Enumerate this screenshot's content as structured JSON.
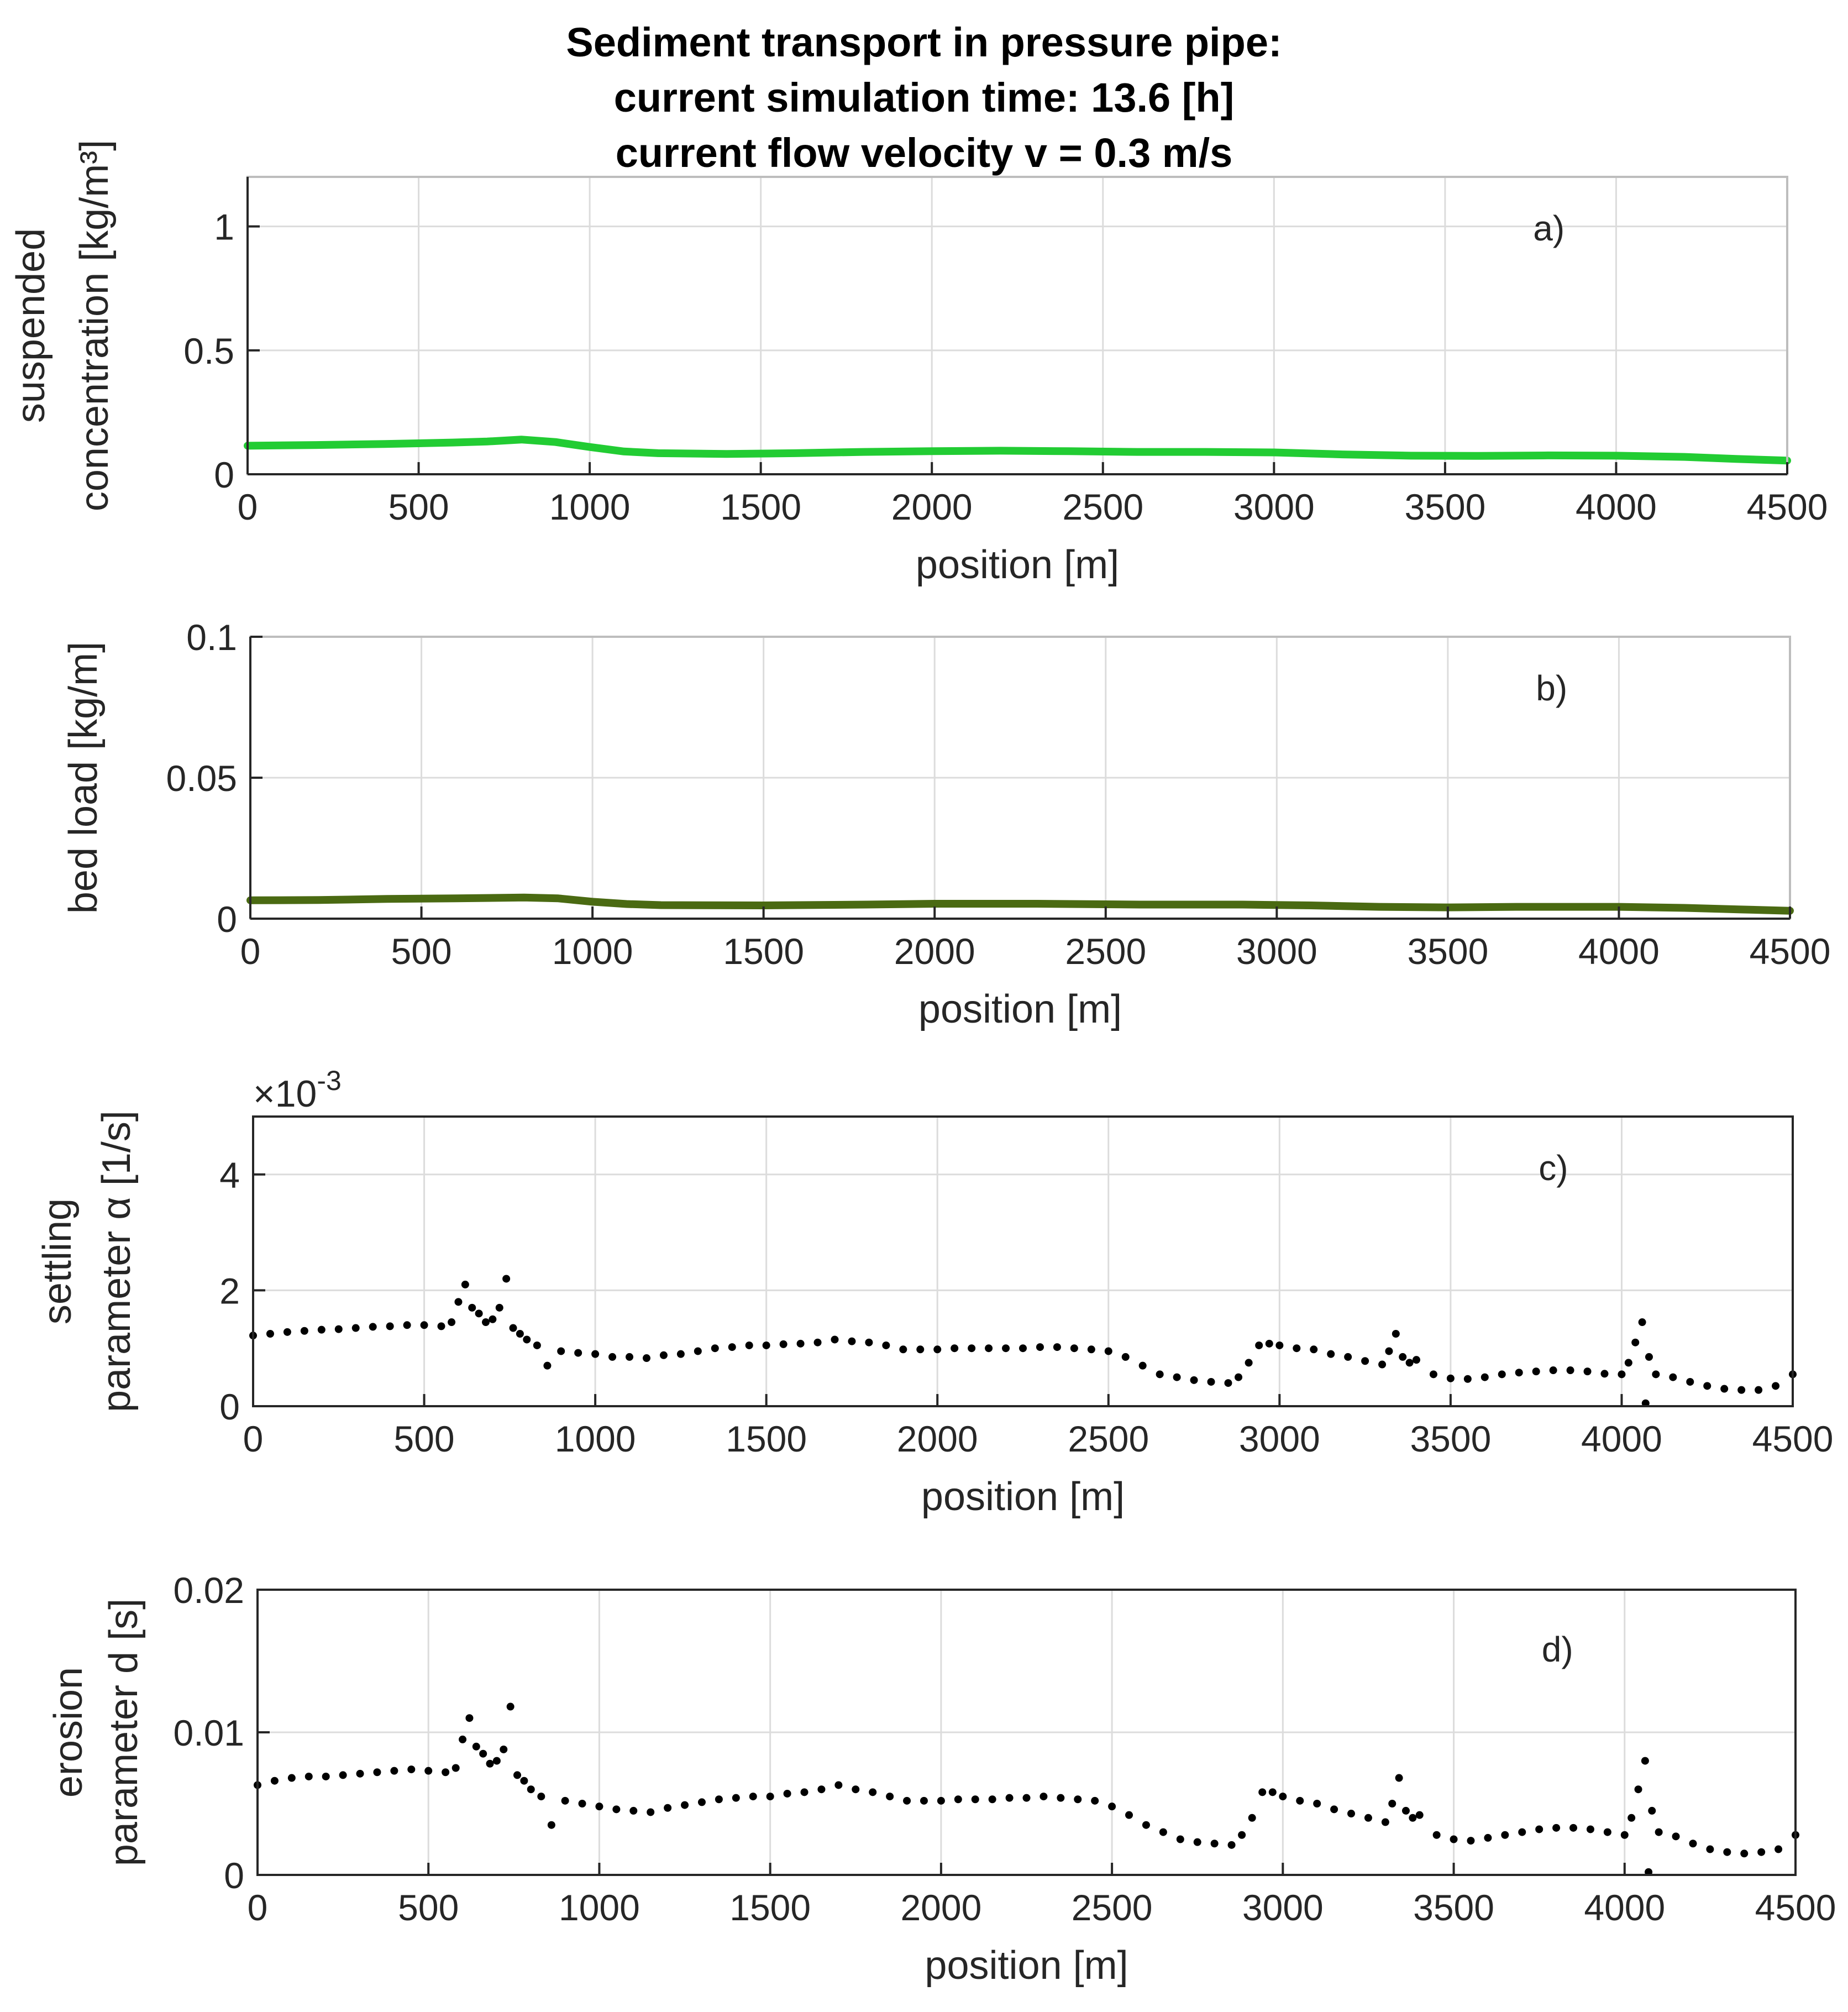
{
  "title_lines": [
    "Sediment transport in pressure pipe:",
    "current simulation time: 13.6 [h]",
    "current flow velocity v = 0.3 m/s"
  ],
  "chart_data": [
    {
      "id": "a",
      "type": "line",
      "panel_label": "a)",
      "xlabel": "position [m]",
      "ylabel_lines": [
        "suspended",
        "concentration [kg/m³]"
      ],
      "xlim": [
        0,
        4500
      ],
      "ylim": [
        0,
        1.2
      ],
      "xticks": [
        0,
        500,
        1000,
        1500,
        2000,
        2500,
        3000,
        3500,
        4000,
        4500
      ],
      "xtick_labels": [
        "0",
        "500",
        "1000",
        "1500",
        "2000",
        "2500",
        "3000",
        "3500",
        "4000",
        "4500"
      ],
      "yticks": [
        0,
        0.5,
        1
      ],
      "ytick_labels": [
        "0",
        "0.5",
        "1"
      ],
      "grid": true,
      "color": "#22cc33",
      "x": [
        0,
        200,
        400,
        600,
        700,
        800,
        900,
        1000,
        1100,
        1200,
        1400,
        1600,
        1800,
        2000,
        2200,
        2400,
        2600,
        2800,
        3000,
        3200,
        3400,
        3600,
        3800,
        4000,
        4200,
        4350,
        4500
      ],
      "y": [
        0.115,
        0.118,
        0.122,
        0.128,
        0.132,
        0.14,
        0.13,
        0.11,
        0.092,
        0.085,
        0.082,
        0.085,
        0.09,
        0.093,
        0.095,
        0.093,
        0.09,
        0.09,
        0.088,
        0.08,
        0.075,
        0.074,
        0.076,
        0.075,
        0.07,
        0.062,
        0.055
      ]
    },
    {
      "id": "b",
      "type": "line",
      "panel_label": "b)",
      "xlabel": "position [m]",
      "ylabel_lines": [
        "bed load [kg/m]"
      ],
      "xlim": [
        0,
        4500
      ],
      "ylim": [
        0,
        0.1
      ],
      "xticks": [
        0,
        500,
        1000,
        1500,
        2000,
        2500,
        3000,
        3500,
        4000,
        4500
      ],
      "xtick_labels": [
        "0",
        "500",
        "1000",
        "1500",
        "2000",
        "2500",
        "3000",
        "3500",
        "4000",
        "4500"
      ],
      "yticks": [
        0,
        0.05,
        0.1
      ],
      "ytick_labels": [
        "0",
        "0.05",
        "0.1"
      ],
      "grid": true,
      "color": "#4a6a12",
      "x": [
        0,
        200,
        400,
        600,
        800,
        900,
        1000,
        1100,
        1200,
        1500,
        1800,
        2000,
        2300,
        2600,
        2900,
        3100,
        3300,
        3500,
        3700,
        4000,
        4200,
        4350,
        4500
      ],
      "y": [
        0.0065,
        0.0066,
        0.007,
        0.0072,
        0.0075,
        0.0072,
        0.006,
        0.0052,
        0.0048,
        0.0047,
        0.005,
        0.0053,
        0.0053,
        0.005,
        0.005,
        0.0047,
        0.0042,
        0.004,
        0.0042,
        0.0042,
        0.0038,
        0.0033,
        0.0028
      ]
    },
    {
      "id": "c",
      "type": "scatter",
      "panel_label": "c)",
      "xlabel": "position [m]",
      "ylabel_lines": [
        "settling",
        "parameter α [1/s]"
      ],
      "exponent_label": "×10",
      "exponent_power": "-3",
      "xlim": [
        0,
        4500
      ],
      "ylim": [
        0,
        5
      ],
      "xticks": [
        0,
        500,
        1000,
        1500,
        2000,
        2500,
        3000,
        3500,
        4000,
        4500
      ],
      "xtick_labels": [
        "0",
        "500",
        "1000",
        "1500",
        "2000",
        "2500",
        "3000",
        "3500",
        "4000",
        "4500"
      ],
      "yticks": [
        0,
        2,
        4
      ],
      "ytick_labels": [
        "0",
        "2",
        "4"
      ],
      "grid": true,
      "color": "#000000",
      "x": [
        0,
        50,
        100,
        150,
        200,
        250,
        300,
        350,
        400,
        450,
        500,
        550,
        580,
        600,
        620,
        640,
        660,
        680,
        700,
        720,
        740,
        760,
        780,
        800,
        830,
        860,
        900,
        950,
        1000,
        1050,
        1100,
        1150,
        1200,
        1250,
        1300,
        1350,
        1400,
        1450,
        1500,
        1550,
        1600,
        1650,
        1700,
        1750,
        1800,
        1850,
        1900,
        1950,
        2000,
        2050,
        2100,
        2150,
        2200,
        2250,
        2300,
        2350,
        2400,
        2450,
        2500,
        2550,
        2600,
        2650,
        2700,
        2750,
        2800,
        2850,
        2880,
        2910,
        2940,
        2970,
        3000,
        3050,
        3100,
        3150,
        3200,
        3250,
        3300,
        3320,
        3340,
        3360,
        3380,
        3400,
        3450,
        3500,
        3550,
        3600,
        3650,
        3700,
        3750,
        3800,
        3850,
        3900,
        3950,
        4000,
        4020,
        4040,
        4060,
        4070,
        4080,
        4100,
        4150,
        4200,
        4250,
        4300,
        4350,
        4400,
        4450,
        4500
      ],
      "y": [
        1.22,
        1.25,
        1.28,
        1.3,
        1.32,
        1.33,
        1.35,
        1.37,
        1.38,
        1.4,
        1.4,
        1.38,
        1.45,
        1.8,
        2.1,
        1.7,
        1.6,
        1.45,
        1.5,
        1.7,
        2.2,
        1.35,
        1.25,
        1.15,
        1.05,
        0.7,
        0.95,
        0.92,
        0.9,
        0.85,
        0.85,
        0.83,
        0.88,
        0.9,
        0.95,
        1.0,
        1.02,
        1.05,
        1.05,
        1.07,
        1.08,
        1.1,
        1.15,
        1.12,
        1.1,
        1.05,
        0.98,
        0.98,
        0.98,
        1.0,
        1.0,
        1.0,
        1.0,
        1.0,
        1.02,
        1.02,
        1.0,
        0.98,
        0.95,
        0.85,
        0.7,
        0.55,
        0.5,
        0.45,
        0.42,
        0.4,
        0.5,
        0.75,
        1.05,
        1.08,
        1.05,
        1.0,
        0.98,
        0.9,
        0.85,
        0.78,
        0.72,
        0.95,
        1.25,
        0.85,
        0.75,
        0.8,
        0.55,
        0.48,
        0.47,
        0.5,
        0.55,
        0.58,
        0.6,
        0.62,
        0.62,
        0.6,
        0.56,
        0.55,
        0.75,
        1.1,
        1.45,
        0.05,
        0.85,
        0.55,
        0.5,
        0.42,
        0.35,
        0.3,
        0.28,
        0.28,
        0.35,
        0.55
      ]
    },
    {
      "id": "d",
      "type": "scatter",
      "panel_label": "d)",
      "xlabel": "position [m]",
      "ylabel_lines": [
        "erosion",
        "parameter d [s]"
      ],
      "xlim": [
        0,
        4500
      ],
      "ylim": [
        0,
        0.02
      ],
      "xticks": [
        0,
        500,
        1000,
        1500,
        2000,
        2500,
        3000,
        3500,
        4000,
        4500
      ],
      "xtick_labels": [
        "0",
        "500",
        "1000",
        "1500",
        "2000",
        "2500",
        "3000",
        "3500",
        "4000",
        "4500"
      ],
      "yticks": [
        0,
        0.01,
        0.02
      ],
      "ytick_labels": [
        "0",
        "0.01",
        "0.02"
      ],
      "grid": true,
      "color": "#000000",
      "x": [
        0,
        50,
        100,
        150,
        200,
        250,
        300,
        350,
        400,
        450,
        500,
        550,
        580,
        600,
        620,
        640,
        660,
        680,
        700,
        720,
        740,
        760,
        780,
        800,
        830,
        860,
        900,
        950,
        1000,
        1050,
        1100,
        1150,
        1200,
        1250,
        1300,
        1350,
        1400,
        1450,
        1500,
        1550,
        1600,
        1650,
        1700,
        1750,
        1800,
        1850,
        1900,
        1950,
        2000,
        2050,
        2100,
        2150,
        2200,
        2250,
        2300,
        2350,
        2400,
        2450,
        2500,
        2550,
        2600,
        2650,
        2700,
        2750,
        2800,
        2850,
        2880,
        2910,
        2940,
        2970,
        3000,
        3050,
        3100,
        3150,
        3200,
        3250,
        3300,
        3320,
        3340,
        3360,
        3380,
        3400,
        3450,
        3500,
        3550,
        3600,
        3650,
        3700,
        3750,
        3800,
        3850,
        3900,
        3950,
        4000,
        4020,
        4040,
        4060,
        4070,
        4080,
        4100,
        4150,
        4200,
        4250,
        4300,
        4350,
        4400,
        4450,
        4500
      ],
      "y": [
        0.0063,
        0.0066,
        0.0068,
        0.0069,
        0.0069,
        0.007,
        0.0071,
        0.0072,
        0.0073,
        0.0074,
        0.0073,
        0.0072,
        0.0075,
        0.0095,
        0.011,
        0.009,
        0.0085,
        0.0078,
        0.008,
        0.0088,
        0.0118,
        0.007,
        0.0066,
        0.006,
        0.0055,
        0.0035,
        0.0052,
        0.005,
        0.0048,
        0.0046,
        0.0045,
        0.0044,
        0.0047,
        0.0049,
        0.0051,
        0.0053,
        0.0054,
        0.0055,
        0.0055,
        0.0057,
        0.0058,
        0.006,
        0.0063,
        0.006,
        0.0058,
        0.0055,
        0.0052,
        0.0052,
        0.0052,
        0.0053,
        0.0053,
        0.0053,
        0.0054,
        0.0054,
        0.0055,
        0.0054,
        0.0053,
        0.0052,
        0.0048,
        0.0042,
        0.0035,
        0.003,
        0.0025,
        0.0023,
        0.0022,
        0.0021,
        0.0028,
        0.004,
        0.0058,
        0.0058,
        0.0055,
        0.0052,
        0.005,
        0.0046,
        0.0043,
        0.004,
        0.0037,
        0.005,
        0.0068,
        0.0045,
        0.004,
        0.0042,
        0.0028,
        0.0025,
        0.0024,
        0.0026,
        0.0028,
        0.003,
        0.0032,
        0.0033,
        0.0033,
        0.0032,
        0.003,
        0.0028,
        0.004,
        0.006,
        0.008,
        0.0002,
        0.0045,
        0.003,
        0.0027,
        0.0022,
        0.0018,
        0.0016,
        0.0015,
        0.0016,
        0.0018,
        0.0028
      ]
    }
  ]
}
